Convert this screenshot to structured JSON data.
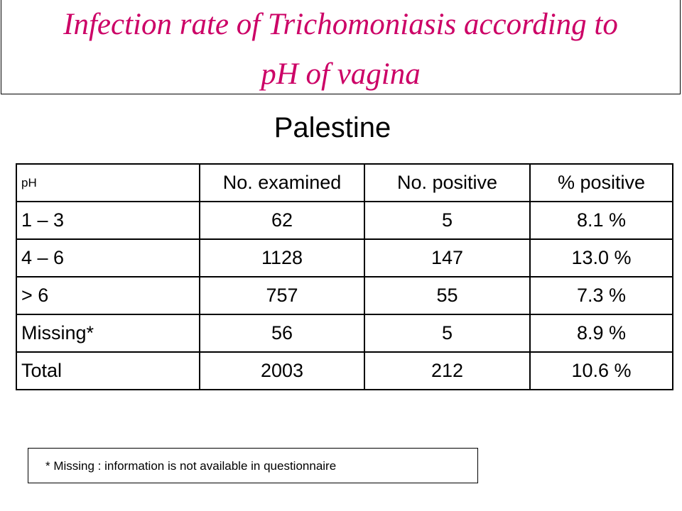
{
  "title": {
    "line1": "Infection rate of Trichomoniasis according to",
    "line2": "pH of vagina",
    "color": "#cc0066"
  },
  "subtitle": "Palestine",
  "table": {
    "headers": [
      "pH",
      "No. examined",
      "No. positive",
      "% positive"
    ],
    "rows": [
      [
        "1 – 3",
        "62",
        "5",
        "8.1 %"
      ],
      [
        "4 – 6",
        "1128",
        "147",
        "13.0 %"
      ],
      [
        "> 6",
        "757",
        "55",
        "7.3 %"
      ],
      [
        "Missing*",
        "56",
        "5",
        "8.9 %"
      ],
      [
        "Total",
        "2003",
        "212",
        "10.6 %"
      ]
    ]
  },
  "footnote": "* Missing : information is not available in questionnaire"
}
